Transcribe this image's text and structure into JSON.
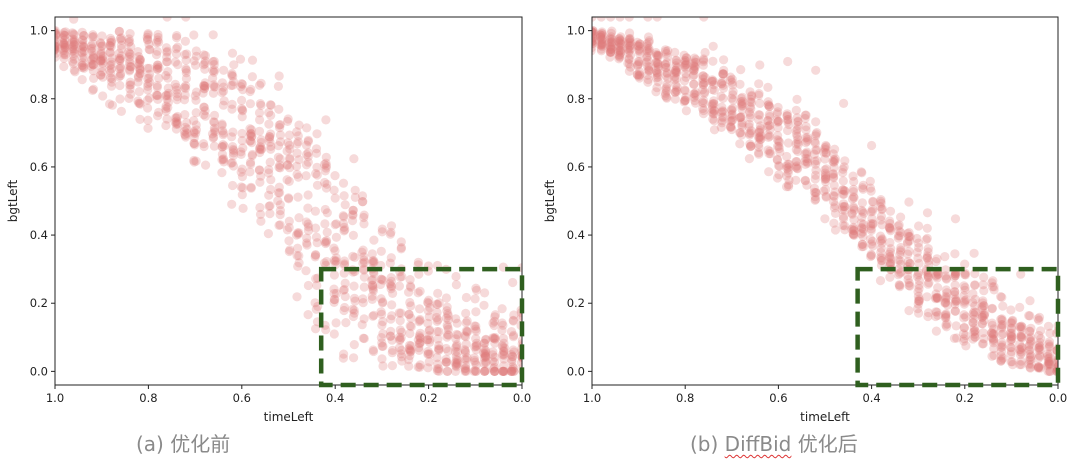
{
  "chart_data": [
    {
      "type": "scatter",
      "id": "a",
      "caption_prefix": "(a)",
      "caption_main": "优化前",
      "xlabel": "timeLeft",
      "ylabel": "bgtLeft",
      "xlim": [
        1.0,
        0.0
      ],
      "ylim": [
        -0.04,
        1.04
      ],
      "xticks": [
        "1.0",
        "0.8",
        "0.6",
        "0.4",
        "0.2",
        "0.0"
      ],
      "xtick_values": [
        1.0,
        0.8,
        0.6,
        0.4,
        0.2,
        0.0
      ],
      "yticks": [
        "0.0",
        "0.2",
        "0.4",
        "0.6",
        "0.8",
        "1.0"
      ],
      "ytick_values": [
        0.0,
        0.2,
        0.4,
        0.6,
        0.8,
        1.0
      ],
      "point_color": "#e07b7b",
      "point_alpha": 0.28,
      "highlight_box": {
        "x_range": [
          0.43,
          0.0
        ],
        "y_range": [
          -0.04,
          0.3
        ],
        "color": "#2f5f1f",
        "style": "dashed"
      },
      "series": [
        {
          "name": "trajectories",
          "x": [
            1.0,
            0.98,
            0.96,
            0.94,
            0.92,
            0.9,
            0.88,
            0.86,
            0.84,
            0.82,
            0.8,
            0.78,
            0.76,
            0.74,
            0.72,
            0.7,
            0.68,
            0.66,
            0.64,
            0.62,
            0.6,
            0.58,
            0.56,
            0.54,
            0.52,
            0.5,
            0.48,
            0.46,
            0.44,
            0.42,
            0.4,
            0.38,
            0.36,
            0.34,
            0.32,
            0.3,
            0.28,
            0.26,
            0.24,
            0.22,
            0.2,
            0.18,
            0.16,
            0.14,
            0.12,
            0.1,
            0.08,
            0.06,
            0.04,
            0.02,
            0.0
          ],
          "y_high": [
            1.0,
            1.0,
            1.0,
            1.0,
            1.0,
            1.0,
            1.0,
            1.0,
            1.0,
            1.0,
            1.0,
            1.0,
            1.0,
            1.0,
            1.0,
            1.0,
            1.0,
            0.99,
            0.97,
            0.95,
            0.93,
            0.92,
            0.9,
            0.88,
            0.85,
            0.82,
            0.78,
            0.74,
            0.72,
            0.68,
            0.64,
            0.58,
            0.56,
            0.52,
            0.5,
            0.47,
            0.44,
            0.42,
            0.4,
            0.36,
            0.34,
            0.32,
            0.3,
            0.28,
            0.26,
            0.25,
            0.22,
            0.2,
            0.2,
            0.18,
            0.18
          ],
          "y_low": [
            0.9,
            0.88,
            0.86,
            0.84,
            0.82,
            0.8,
            0.78,
            0.76,
            0.74,
            0.72,
            0.7,
            0.68,
            0.66,
            0.64,
            0.62,
            0.6,
            0.58,
            0.55,
            0.52,
            0.48,
            0.46,
            0.44,
            0.4,
            0.36,
            0.3,
            0.25,
            0.2,
            0.16,
            0.12,
            0.08,
            0.05,
            0.03,
            0.02,
            0.02,
            0.01,
            0.01,
            0.0,
            0.0,
            0.0,
            0.0,
            0.0,
            0.0,
            0.0,
            0.0,
            0.0,
            0.0,
            0.0,
            0.0,
            0.0,
            0.0,
            0.0
          ],
          "y_center": [
            0.97,
            0.96,
            0.95,
            0.94,
            0.93,
            0.92,
            0.91,
            0.9,
            0.89,
            0.88,
            0.87,
            0.86,
            0.84,
            0.83,
            0.82,
            0.8,
            0.78,
            0.76,
            0.74,
            0.72,
            0.7,
            0.68,
            0.65,
            0.62,
            0.58,
            0.55,
            0.52,
            0.48,
            0.45,
            0.42,
            0.38,
            0.34,
            0.3,
            0.27,
            0.24,
            0.21,
            0.18,
            0.16,
            0.14,
            0.12,
            0.1,
            0.09,
            0.08,
            0.07,
            0.06,
            0.05,
            0.04,
            0.03,
            0.03,
            0.02,
            0.02
          ]
        }
      ]
    },
    {
      "type": "scatter",
      "id": "b",
      "caption_prefix": "(b)",
      "caption_method": "DiffBid",
      "caption_main": "优化后",
      "xlabel": "timeLeft",
      "ylabel": "bgtLeft",
      "xlim": [
        1.0,
        0.0
      ],
      "ylim": [
        -0.04,
        1.04
      ],
      "xticks": [
        "1.0",
        "0.8",
        "0.6",
        "0.4",
        "0.2",
        "0.0"
      ],
      "xtick_values": [
        1.0,
        0.8,
        0.6,
        0.4,
        0.2,
        0.0
      ],
      "yticks": [
        "0.0",
        "0.2",
        "0.4",
        "0.6",
        "0.8",
        "1.0"
      ],
      "ytick_values": [
        0.0,
        0.2,
        0.4,
        0.6,
        0.8,
        1.0
      ],
      "point_color": "#e07b7b",
      "point_alpha": 0.28,
      "highlight_box": {
        "x_range": [
          0.43,
          0.0
        ],
        "y_range": [
          -0.04,
          0.3
        ],
        "color": "#2f5f1f",
        "style": "dashed"
      },
      "series": [
        {
          "name": "trajectories",
          "x": [
            1.0,
            0.98,
            0.96,
            0.94,
            0.92,
            0.9,
            0.88,
            0.86,
            0.84,
            0.82,
            0.8,
            0.78,
            0.76,
            0.74,
            0.72,
            0.7,
            0.68,
            0.66,
            0.64,
            0.62,
            0.6,
            0.58,
            0.56,
            0.54,
            0.52,
            0.5,
            0.48,
            0.46,
            0.44,
            0.42,
            0.4,
            0.38,
            0.36,
            0.34,
            0.32,
            0.3,
            0.28,
            0.26,
            0.24,
            0.22,
            0.2,
            0.18,
            0.16,
            0.14,
            0.12,
            0.1,
            0.08,
            0.06,
            0.04,
            0.02,
            0.0
          ],
          "y_high": [
            1.0,
            1.0,
            1.0,
            1.0,
            1.0,
            1.0,
            1.0,
            0.99,
            0.98,
            0.97,
            0.96,
            0.95,
            0.94,
            0.93,
            0.92,
            0.9,
            0.89,
            0.88,
            0.86,
            0.84,
            0.82,
            0.8,
            0.78,
            0.76,
            0.74,
            0.72,
            0.69,
            0.66,
            0.62,
            0.6,
            0.58,
            0.56,
            0.52,
            0.48,
            0.46,
            0.44,
            0.42,
            0.4,
            0.38,
            0.36,
            0.33,
            0.3,
            0.28,
            0.26,
            0.24,
            0.22,
            0.2,
            0.18,
            0.16,
            0.14,
            0.12
          ],
          "y_low": [
            0.94,
            0.93,
            0.92,
            0.9,
            0.88,
            0.86,
            0.84,
            0.82,
            0.8,
            0.78,
            0.76,
            0.74,
            0.72,
            0.7,
            0.68,
            0.66,
            0.64,
            0.62,
            0.6,
            0.58,
            0.56,
            0.54,
            0.52,
            0.5,
            0.47,
            0.44,
            0.41,
            0.38,
            0.35,
            0.32,
            0.29,
            0.26,
            0.23,
            0.2,
            0.17,
            0.15,
            0.13,
            0.11,
            0.09,
            0.08,
            0.07,
            0.06,
            0.05,
            0.04,
            0.03,
            0.02,
            0.02,
            0.01,
            0.01,
            0.0,
            0.0
          ],
          "y_center": [
            0.98,
            0.97,
            0.96,
            0.95,
            0.94,
            0.92,
            0.91,
            0.9,
            0.89,
            0.87,
            0.86,
            0.85,
            0.83,
            0.82,
            0.8,
            0.78,
            0.77,
            0.75,
            0.73,
            0.71,
            0.69,
            0.67,
            0.65,
            0.63,
            0.61,
            0.58,
            0.55,
            0.52,
            0.49,
            0.46,
            0.43,
            0.4,
            0.37,
            0.34,
            0.31,
            0.28,
            0.26,
            0.23,
            0.21,
            0.19,
            0.17,
            0.15,
            0.13,
            0.11,
            0.09,
            0.08,
            0.07,
            0.06,
            0.05,
            0.04,
            0.03
          ]
        }
      ]
    }
  ]
}
